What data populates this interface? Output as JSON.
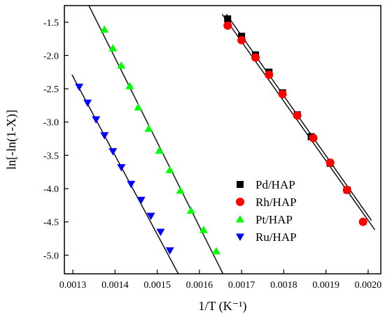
{
  "chart_data": {
    "type": "scatter",
    "title": "",
    "xlabel": "1/T (K⁻¹)",
    "ylabel": "ln[-ln(1-X)]",
    "xlim": [
      0.00128,
      0.00203
    ],
    "ylim": [
      -5.28,
      -1.25
    ],
    "xticks": [
      0.0013,
      0.0014,
      0.0015,
      0.0016,
      0.0017,
      0.0018,
      0.0019,
      0.002
    ],
    "xtick_labels": [
      "0.0013",
      "0.0014",
      "0.0015",
      "0.0016",
      "0.0017",
      "0.0018",
      "0.0019",
      "0.0020"
    ],
    "yticks": [
      -5.0,
      -4.5,
      -4.0,
      -3.5,
      -3.0,
      -2.5,
      -2.0,
      -1.5
    ],
    "ytick_labels": [
      "-5.0",
      "-4.5",
      "-4.0",
      "-3.5",
      "-3.0",
      "-2.5",
      "-2.0",
      "-1.5"
    ],
    "legend_position": "lower-right",
    "grid": false,
    "series": [
      {
        "name": "Pd/HAP",
        "marker": "square",
        "color": "#000000",
        "x": [
          0.001667,
          0.0017,
          0.001733,
          0.001765,
          0.001797,
          0.001832,
          0.001865,
          0.00191,
          0.00195
        ],
        "y": [
          -1.45,
          -1.71,
          -1.99,
          -2.25,
          -2.56,
          -2.89,
          -3.22,
          -3.62,
          -4.02
        ],
        "fit": {
          "x": [
            0.001664,
            0.002008
          ],
          "y": [
            -1.38,
            -4.48
          ]
        }
      },
      {
        "name": "Rh/HAP",
        "marker": "circle",
        "color": "#ff0000",
        "x": [
          0.001667,
          0.0017,
          0.001733,
          0.001765,
          0.001797,
          0.001832,
          0.00187,
          0.00191,
          0.00195,
          0.001988
        ],
        "y": [
          -1.55,
          -1.77,
          -2.03,
          -2.29,
          -2.58,
          -2.9,
          -3.24,
          -3.61,
          -4.02,
          -4.5
        ],
        "fit": {
          "x": [
            0.001654,
            0.002016
          ],
          "y": [
            -1.38,
            -4.62
          ]
        }
      },
      {
        "name": "Pt/HAP",
        "marker": "triangle-up",
        "color": "#00ff00",
        "x": [
          0.001375,
          0.001395,
          0.001415,
          0.001435,
          0.001455,
          0.00148,
          0.001505,
          0.00153,
          0.001555,
          0.00158,
          0.00161,
          0.00164
        ],
        "y": [
          -1.61,
          -1.89,
          -2.15,
          -2.46,
          -2.78,
          -3.1,
          -3.43,
          -3.72,
          -4.03,
          -4.33,
          -4.62,
          -4.94
        ],
        "fit": {
          "x": [
            0.001338,
            0.001656
          ],
          "y": [
            -1.25,
            -5.28
          ]
        }
      },
      {
        "name": "Ru/HAP",
        "marker": "triangle-down",
        "color": "#0000ff",
        "x": [
          0.001315,
          0.001335,
          0.001355,
          0.001375,
          0.001395,
          0.001415,
          0.001438,
          0.001462,
          0.001485,
          0.001508,
          0.00153
        ],
        "y": [
          -2.47,
          -2.71,
          -2.96,
          -3.2,
          -3.44,
          -3.68,
          -3.93,
          -4.17,
          -4.41,
          -4.65,
          -4.93
        ],
        "fit": {
          "x": [
            0.001298,
            0.00155
          ],
          "y": [
            -2.29,
            -5.28
          ]
        }
      }
    ]
  }
}
